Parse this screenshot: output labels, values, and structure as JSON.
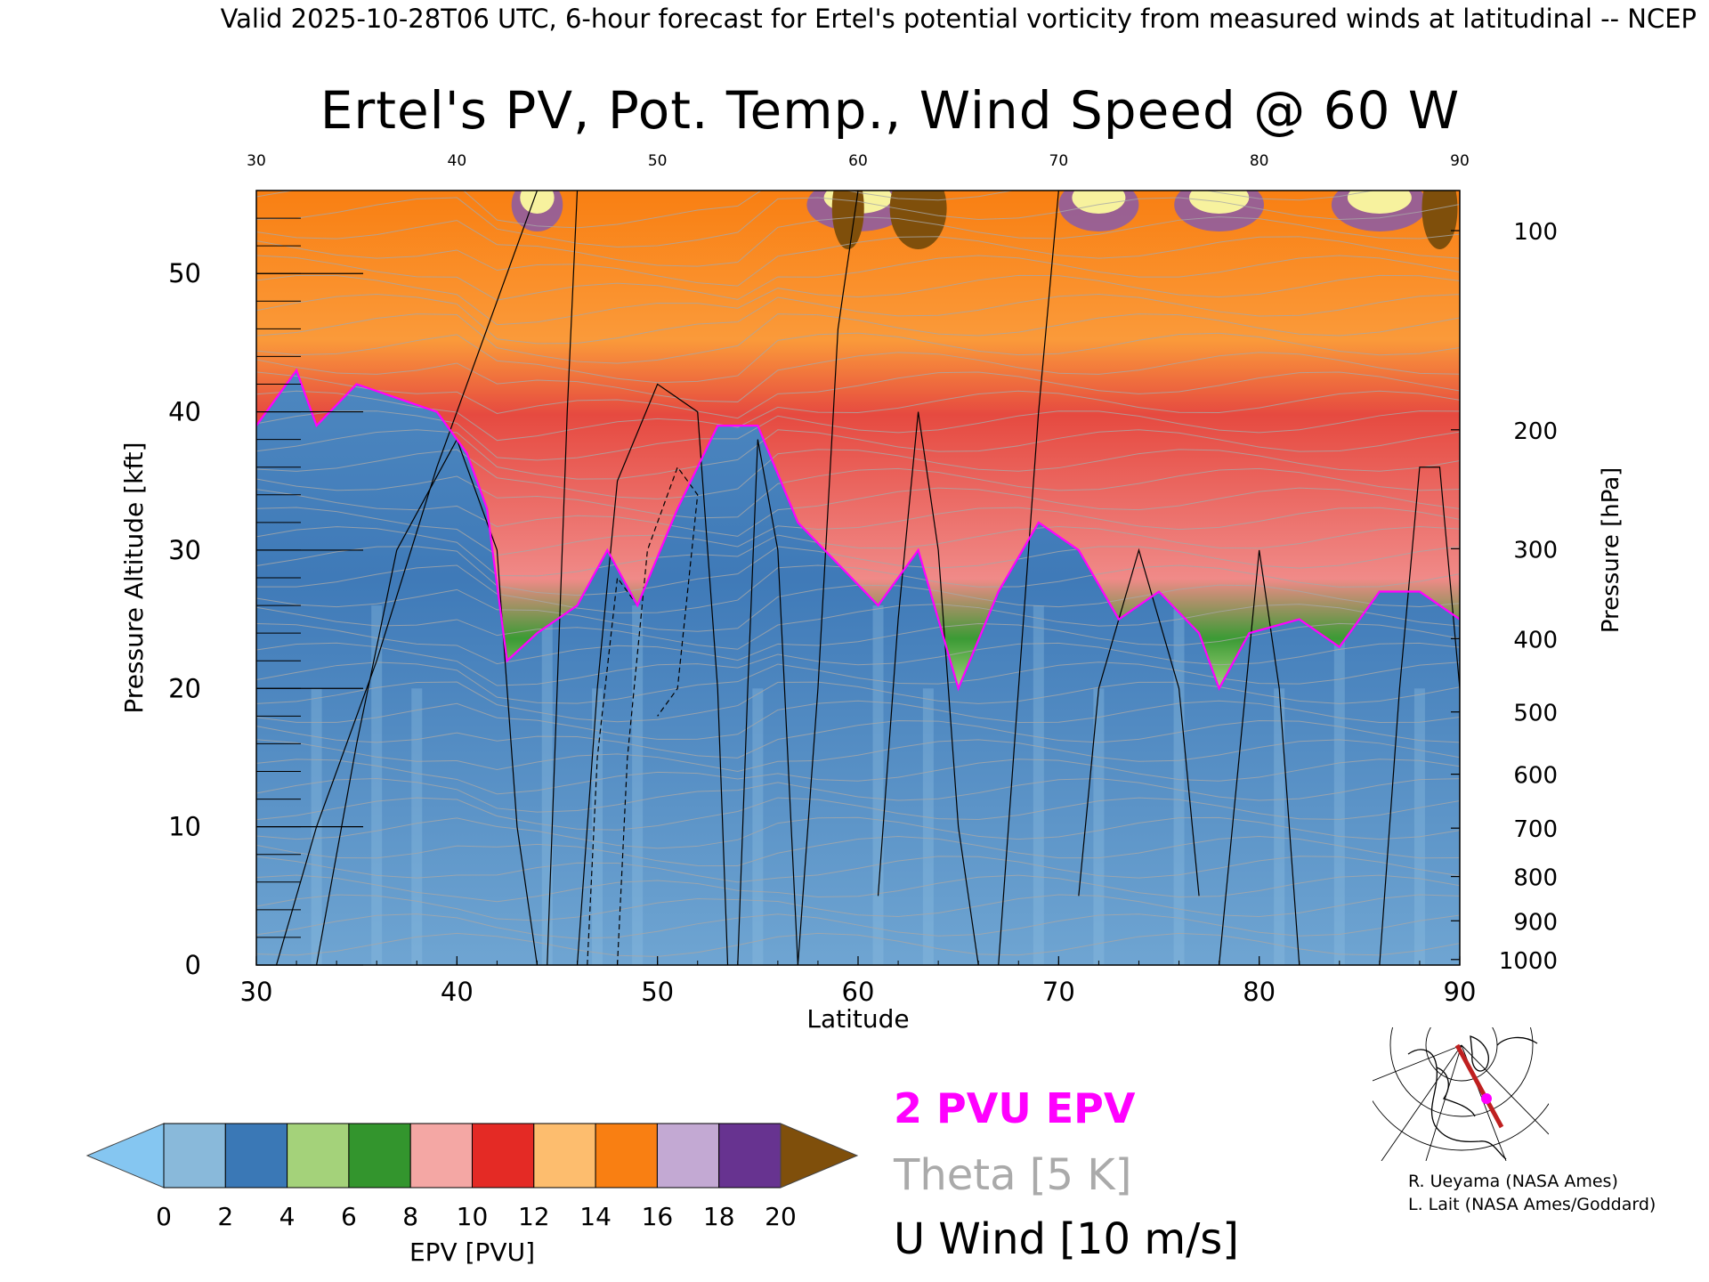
{
  "header": {
    "text": "Valid 2025-10-28T06 UTC, 6-hour forecast for Ertel's potential vorticity from measured winds at latitudinal -- NCEP"
  },
  "chart_data": {
    "type": "heatmap",
    "title": "Ertel's PV, Pot. Temp., Wind Speed @ 60 W",
    "xlabel": "Latitude",
    "ylabel_left": "Pressure Altitude [kft]",
    "ylabel_right": "Pressure [hPa]",
    "xlim": [
      30,
      90
    ],
    "ylim": [
      0,
      56
    ],
    "x_ticks": [
      30,
      40,
      50,
      60,
      70,
      80,
      90
    ],
    "y_ticks_left": [
      0,
      10,
      20,
      30,
      40,
      50
    ],
    "y_ticks_right": [
      {
        "label": "100",
        "kft": 53.1
      },
      {
        "label": "200",
        "kft": 38.7
      },
      {
        "label": "300",
        "kft": 30.1
      },
      {
        "label": "400",
        "kft": 23.6
      },
      {
        "label": "500",
        "kft": 18.3
      },
      {
        "label": "600",
        "kft": 13.8
      },
      {
        "label": "700",
        "kft": 9.9
      },
      {
        "label": "800",
        "kft": 6.4
      },
      {
        "label": "900",
        "kft": 3.2
      },
      {
        "label": "1000",
        "kft": 0.4
      }
    ],
    "tropopause_2pvu_kft": [
      {
        "lat": 30,
        "kft": 39
      },
      {
        "lat": 32,
        "kft": 43
      },
      {
        "lat": 33,
        "kft": 39
      },
      {
        "lat": 35,
        "kft": 42
      },
      {
        "lat": 37,
        "kft": 41
      },
      {
        "lat": 39,
        "kft": 40
      },
      {
        "lat": 40.5,
        "kft": 37
      },
      {
        "lat": 41.5,
        "kft": 33
      },
      {
        "lat": 42.5,
        "kft": 22
      },
      {
        "lat": 44,
        "kft": 24
      },
      {
        "lat": 46,
        "kft": 26
      },
      {
        "lat": 47.5,
        "kft": 30
      },
      {
        "lat": 49,
        "kft": 26
      },
      {
        "lat": 51,
        "kft": 33
      },
      {
        "lat": 53,
        "kft": 39
      },
      {
        "lat": 55,
        "kft": 39
      },
      {
        "lat": 57,
        "kft": 32
      },
      {
        "lat": 59,
        "kft": 29
      },
      {
        "lat": 61,
        "kft": 26
      },
      {
        "lat": 63,
        "kft": 30
      },
      {
        "lat": 65,
        "kft": 20
      },
      {
        "lat": 67,
        "kft": 27
      },
      {
        "lat": 69,
        "kft": 32
      },
      {
        "lat": 71,
        "kft": 30
      },
      {
        "lat": 73,
        "kft": 25
      },
      {
        "lat": 75,
        "kft": 27
      },
      {
        "lat": 77,
        "kft": 24
      },
      {
        "lat": 78,
        "kft": 20
      },
      {
        "lat": 79.5,
        "kft": 24
      },
      {
        "lat": 82,
        "kft": 25
      },
      {
        "lat": 84,
        "kft": 23
      },
      {
        "lat": 86,
        "kft": 27
      },
      {
        "lat": 88,
        "kft": 27
      },
      {
        "lat": 90,
        "kft": 25
      }
    ],
    "colorbar": {
      "label": "EPV [PVU]",
      "ticks": [
        0,
        2,
        4,
        6,
        8,
        10,
        12,
        14,
        16,
        18,
        20
      ],
      "colors": [
        "#89b9da",
        "#3a78b6",
        "#a4d27a",
        "#33952d",
        "#f4a7a4",
        "#e42a25",
        "#fdbd6e",
        "#f97f12",
        "#c3a9d3",
        "#673390",
        "#f7f29e"
      ],
      "under_color": "#85c6f1",
      "over_color": "#7f4f0b"
    }
  },
  "legend": {
    "epv": "2 PVU EPV",
    "theta": "Theta [5 K]",
    "uwind": "U Wind [10 m/s]",
    "epv_color": "#ff00ff",
    "theta_color": "#aaaaaa",
    "uwind_color": "#000000"
  },
  "credits": {
    "line1": "R. Ueyama (NASA Ames)",
    "line2": "L. Lait (NASA Ames/Goddard)"
  },
  "inset_map": {
    "section_color": "#bf2020",
    "marker_color": "#ff00ff"
  }
}
